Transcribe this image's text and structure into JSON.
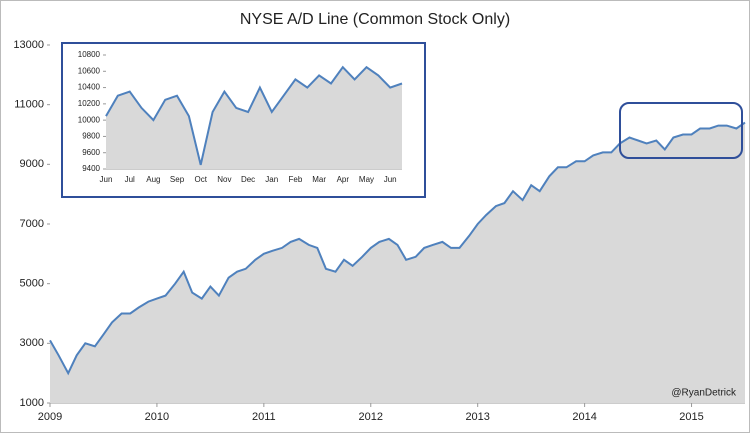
{
  "chart_data": [
    {
      "type": "area",
      "title": "NYSE A/D Line (Common Stock Only)",
      "annotation": "@RyanDetrick",
      "x": [
        2009,
        2009.08,
        2009.17,
        2009.25,
        2009.33,
        2009.42,
        2009.5,
        2009.58,
        2009.67,
        2009.75,
        2009.83,
        2009.92,
        2010,
        2010.08,
        2010.17,
        2010.25,
        2010.33,
        2010.42,
        2010.5,
        2010.58,
        2010.67,
        2010.75,
        2010.83,
        2010.92,
        2011,
        2011.08,
        2011.17,
        2011.25,
        2011.33,
        2011.42,
        2011.5,
        2011.58,
        2011.67,
        2011.75,
        2011.83,
        2011.92,
        2012,
        2012.08,
        2012.17,
        2012.25,
        2012.33,
        2012.42,
        2012.5,
        2012.58,
        2012.67,
        2012.75,
        2012.83,
        2012.92,
        2013,
        2013.08,
        2013.17,
        2013.25,
        2013.33,
        2013.42,
        2013.5,
        2013.58,
        2013.67,
        2013.75,
        2013.83,
        2013.92,
        2014,
        2014.08,
        2014.17,
        2014.25,
        2014.33,
        2014.42,
        2014.5,
        2014.58,
        2014.67,
        2014.75,
        2014.83,
        2014.92,
        2015,
        2015.08,
        2015.17,
        2015.25,
        2015.33,
        2015.42,
        2015.5
      ],
      "series": [
        {
          "name": "NYSE A/D Line",
          "color": "#4f81bd",
          "values": [
            3100,
            2600,
            2000,
            2600,
            3000,
            2900,
            3300,
            3700,
            4000,
            4000,
            4200,
            4400,
            4500,
            4600,
            5000,
            5400,
            4700,
            4500,
            4900,
            4600,
            5200,
            5400,
            5500,
            5800,
            6000,
            6100,
            6200,
            6400,
            6500,
            6300,
            6200,
            5500,
            5400,
            5800,
            5600,
            5900,
            6200,
            6400,
            6500,
            6300,
            5800,
            5900,
            6200,
            6300,
            6400,
            6200,
            6200,
            6600,
            7000,
            7300,
            7600,
            7700,
            8100,
            7800,
            8300,
            8100,
            8600,
            8900,
            8900,
            9100,
            9100,
            9300,
            9400,
            9400,
            9700,
            9900,
            9800,
            9700,
            9800,
            9500,
            9900,
            10000,
            10000,
            10200,
            10200,
            10300,
            10300,
            10200,
            10400
          ]
        }
      ],
      "fill": "#d9d9d9",
      "xlim": [
        2009,
        2015.5
      ],
      "xticks": [
        2009,
        2010,
        2011,
        2012,
        2013,
        2014,
        2015
      ],
      "ylim": [
        1000,
        13000
      ],
      "yticks": [
        1000,
        3000,
        5000,
        7000,
        9000,
        11000,
        13000
      ]
    },
    {
      "type": "area",
      "categories": [
        "Jun",
        null,
        "Jul",
        null,
        "Aug",
        null,
        "Sep",
        null,
        "Oct",
        null,
        "Nov",
        null,
        "Dec",
        null,
        "Jan",
        null,
        "Feb",
        null,
        "Mar",
        null,
        "Apr",
        null,
        "May",
        null,
        "Jun",
        null
      ],
      "series": [
        {
          "name": "NYSE A/D Line",
          "color": "#4f81bd",
          "values": [
            10050,
            10300,
            10350,
            10150,
            10000,
            10250,
            10300,
            10050,
            9450,
            10100,
            10350,
            10150,
            10100,
            10400,
            10100,
            10300,
            10500,
            10400,
            10550,
            10450,
            10650,
            10500,
            10650,
            10550,
            10400,
            10450
          ]
        }
      ],
      "fill": "#d9d9d9",
      "ylim": [
        9400,
        10800
      ],
      "yticks": [
        9400,
        9600,
        9800,
        10000,
        10200,
        10400,
        10600,
        10800
      ]
    }
  ]
}
